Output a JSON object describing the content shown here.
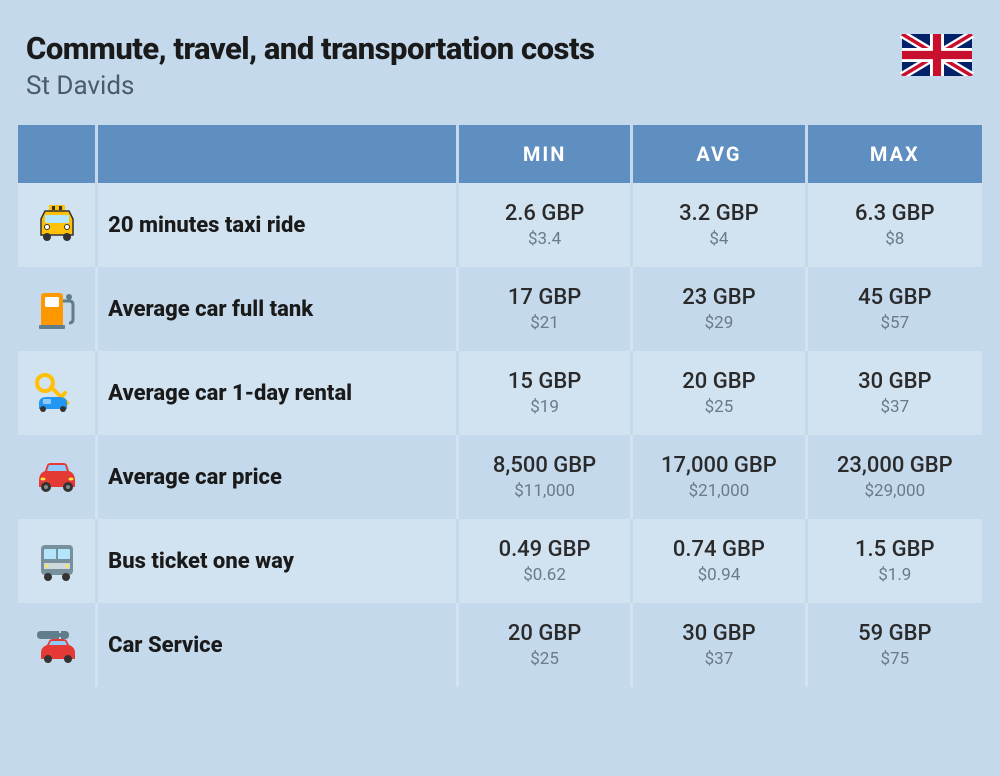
{
  "header": {
    "title": "Commute, travel, and transportation costs",
    "subtitle": "St Davids"
  },
  "columns": {
    "min": "MIN",
    "avg": "AVG",
    "max": "MAX"
  },
  "colors": {
    "page_bg": "#c4d9ec",
    "row_alt_bg": "#d1e2f0",
    "header_bg": "#5e8fc0",
    "header_text": "#ffffff",
    "title_text": "#1a1a1a",
    "subtitle_text": "#4a5a6a",
    "primary_text": "#2a2a2a",
    "secondary_text": "#6a7a8a"
  },
  "rows": [
    {
      "icon": "taxi",
      "label": "20 minutes taxi ride",
      "min": {
        "primary": "2.6 GBP",
        "secondary": "$3.4"
      },
      "avg": {
        "primary": "3.2 GBP",
        "secondary": "$4"
      },
      "max": {
        "primary": "6.3 GBP",
        "secondary": "$8"
      }
    },
    {
      "icon": "fuel-pump",
      "label": "Average car full tank",
      "min": {
        "primary": "17 GBP",
        "secondary": "$21"
      },
      "avg": {
        "primary": "23 GBP",
        "secondary": "$29"
      },
      "max": {
        "primary": "45 GBP",
        "secondary": "$57"
      }
    },
    {
      "icon": "car-key",
      "label": "Average car 1-day rental",
      "min": {
        "primary": "15 GBP",
        "secondary": "$19"
      },
      "avg": {
        "primary": "20 GBP",
        "secondary": "$25"
      },
      "max": {
        "primary": "30 GBP",
        "secondary": "$37"
      }
    },
    {
      "icon": "car",
      "label": "Average car price",
      "min": {
        "primary": "8,500 GBP",
        "secondary": "$11,000"
      },
      "avg": {
        "primary": "17,000 GBP",
        "secondary": "$21,000"
      },
      "max": {
        "primary": "23,000 GBP",
        "secondary": "$29,000"
      }
    },
    {
      "icon": "bus",
      "label": "Bus ticket one way",
      "min": {
        "primary": "0.49 GBP",
        "secondary": "$0.62"
      },
      "avg": {
        "primary": "0.74 GBP",
        "secondary": "$0.94"
      },
      "max": {
        "primary": "1.5 GBP",
        "secondary": "$1.9"
      }
    },
    {
      "icon": "car-service",
      "label": "Car Service",
      "min": {
        "primary": "20 GBP",
        "secondary": "$25"
      },
      "avg": {
        "primary": "30 GBP",
        "secondary": "$37"
      },
      "max": {
        "primary": "59 GBP",
        "secondary": "$75"
      }
    }
  ]
}
